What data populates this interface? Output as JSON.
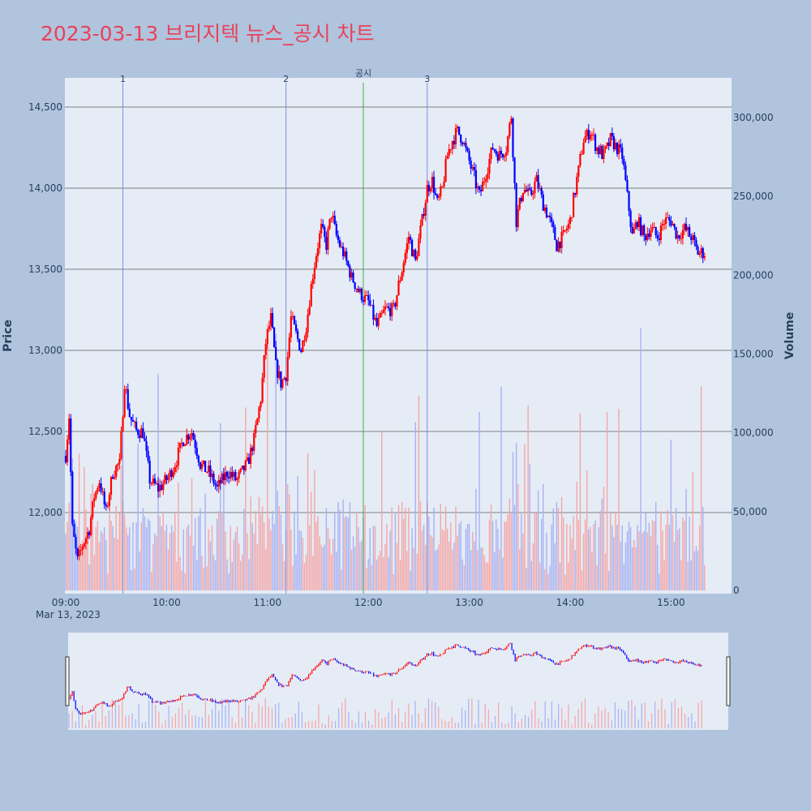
{
  "chart_data": {
    "type": "candlestick",
    "title": "2023-03-13 브리지텍 뉴스_공시 차트",
    "title_color": "#e8425a",
    "date_label": "Mar 13, 2023",
    "y_title": "Price",
    "y2_title": "Volume",
    "x_range": [
      "09:00",
      "15:30"
    ],
    "y_range": [
      11500,
      14680
    ],
    "y2_range": [
      0,
      318000
    ],
    "x_ticks": [
      "09:00",
      "10:00",
      "11:00",
      "12:00",
      "13:00",
      "14:00",
      "15:00"
    ],
    "y_ticks": [
      {
        "value": 12000,
        "label": "12,000"
      },
      {
        "value": 12500,
        "label": "12,500"
      },
      {
        "value": 13000,
        "label": "13,000"
      },
      {
        "value": 13500,
        "label": "13,500"
      },
      {
        "value": 14000,
        "label": "14,000"
      },
      {
        "value": 14500,
        "label": "14,500"
      }
    ],
    "y2_ticks": [
      {
        "value": 0,
        "label": "0"
      },
      {
        "value": 50000,
        "label": "50,000"
      },
      {
        "value": 100000,
        "label": "100,000"
      },
      {
        "value": 150000,
        "label": "150,000"
      },
      {
        "value": 200000,
        "label": "200,000"
      },
      {
        "value": 250000,
        "label": "250,000"
      },
      {
        "value": 300000,
        "label": "300,000"
      }
    ],
    "grid": true,
    "up_color": "#ff0000",
    "down_color": "#0000ff",
    "markers": [
      {
        "time": "09:34",
        "label": "1",
        "color": "#6c7fd8"
      },
      {
        "time": "11:11",
        "label": "2",
        "color": "#6c7fd8"
      },
      {
        "time": "11:57",
        "label": "공시",
        "color": "#2ca02c"
      },
      {
        "time": "12:35",
        "label": "3",
        "color": "#6c7fd8"
      }
    ],
    "price_path": [
      [
        "09:00",
        12350
      ],
      [
        "09:02",
        12600
      ],
      [
        "09:04",
        11900
      ],
      [
        "09:07",
        11700
      ],
      [
        "09:10",
        11800
      ],
      [
        "09:14",
        11900
      ],
      [
        "09:17",
        12100
      ],
      [
        "09:20",
        12200
      ],
      [
        "09:24",
        12000
      ],
      [
        "09:28",
        12250
      ],
      [
        "09:32",
        12300
      ],
      [
        "09:35",
        12800
      ],
      [
        "09:38",
        12600
      ],
      [
        "09:42",
        12500
      ],
      [
        "09:46",
        12500
      ],
      [
        "09:50",
        12200
      ],
      [
        "09:55",
        12150
      ],
      [
        "10:00",
        12200
      ],
      [
        "10:05",
        12300
      ],
      [
        "10:10",
        12450
      ],
      [
        "10:15",
        12500
      ],
      [
        "10:20",
        12300
      ],
      [
        "10:25",
        12250
      ],
      [
        "10:30",
        12150
      ],
      [
        "10:36",
        12250
      ],
      [
        "10:42",
        12200
      ],
      [
        "10:48",
        12300
      ],
      [
        "10:52",
        12450
      ],
      [
        "10:56",
        12700
      ],
      [
        "10:59",
        13050
      ],
      [
        "11:02",
        13200
      ],
      [
        "11:05",
        12900
      ],
      [
        "11:08",
        12800
      ],
      [
        "11:11",
        12850
      ],
      [
        "11:14",
        13200
      ],
      [
        "11:17",
        13100
      ],
      [
        "11:20",
        13000
      ],
      [
        "11:23",
        13150
      ],
      [
        "11:26",
        13400
      ],
      [
        "11:29",
        13600
      ],
      [
        "11:32",
        13750
      ],
      [
        "11:35",
        13650
      ],
      [
        "11:38",
        13850
      ],
      [
        "11:41",
        13700
      ],
      [
        "11:45",
        13600
      ],
      [
        "11:50",
        13450
      ],
      [
        "11:55",
        13350
      ],
      [
        "12:00",
        13300
      ],
      [
        "12:05",
        13150
      ],
      [
        "12:10",
        13250
      ],
      [
        "12:15",
        13250
      ],
      [
        "12:20",
        13500
      ],
      [
        "12:24",
        13700
      ],
      [
        "12:28",
        13550
      ],
      [
        "12:32",
        13800
      ],
      [
        "12:35",
        14000
      ],
      [
        "12:38",
        14050
      ],
      [
        "12:41",
        13900
      ],
      [
        "12:44",
        14000
      ],
      [
        "12:47",
        14200
      ],
      [
        "12:50",
        14300
      ],
      [
        "12:53",
        14350
      ],
      [
        "12:56",
        14300
      ],
      [
        "12:59",
        14200
      ],
      [
        "13:02",
        14100
      ],
      [
        "13:06",
        13950
      ],
      [
        "13:10",
        14100
      ],
      [
        "13:14",
        14250
      ],
      [
        "13:18",
        14200
      ],
      [
        "13:22",
        14250
      ],
      [
        "13:25",
        14450
      ],
      [
        "13:28",
        13800
      ],
      [
        "13:32",
        14000
      ],
      [
        "13:36",
        13950
      ],
      [
        "13:40",
        14050
      ],
      [
        "13:44",
        13900
      ],
      [
        "13:48",
        13800
      ],
      [
        "13:52",
        13650
      ],
      [
        "13:56",
        13700
      ],
      [
        "14:00",
        13800
      ],
      [
        "14:04",
        14050
      ],
      [
        "14:08",
        14300
      ],
      [
        "14:12",
        14350
      ],
      [
        "14:16",
        14250
      ],
      [
        "14:20",
        14200
      ],
      [
        "14:24",
        14300
      ],
      [
        "14:28",
        14250
      ],
      [
        "14:31",
        14200
      ],
      [
        "14:34",
        13950
      ],
      [
        "14:37",
        13700
      ],
      [
        "14:40",
        13800
      ],
      [
        "14:44",
        13700
      ],
      [
        "14:48",
        13750
      ],
      [
        "14:52",
        13700
      ],
      [
        "14:56",
        13800
      ],
      [
        "15:00",
        13800
      ],
      [
        "15:04",
        13700
      ],
      [
        "15:08",
        13750
      ],
      [
        "15:12",
        13700
      ],
      [
        "15:16",
        13600
      ],
      [
        "15:20",
        13600
      ]
    ]
  }
}
